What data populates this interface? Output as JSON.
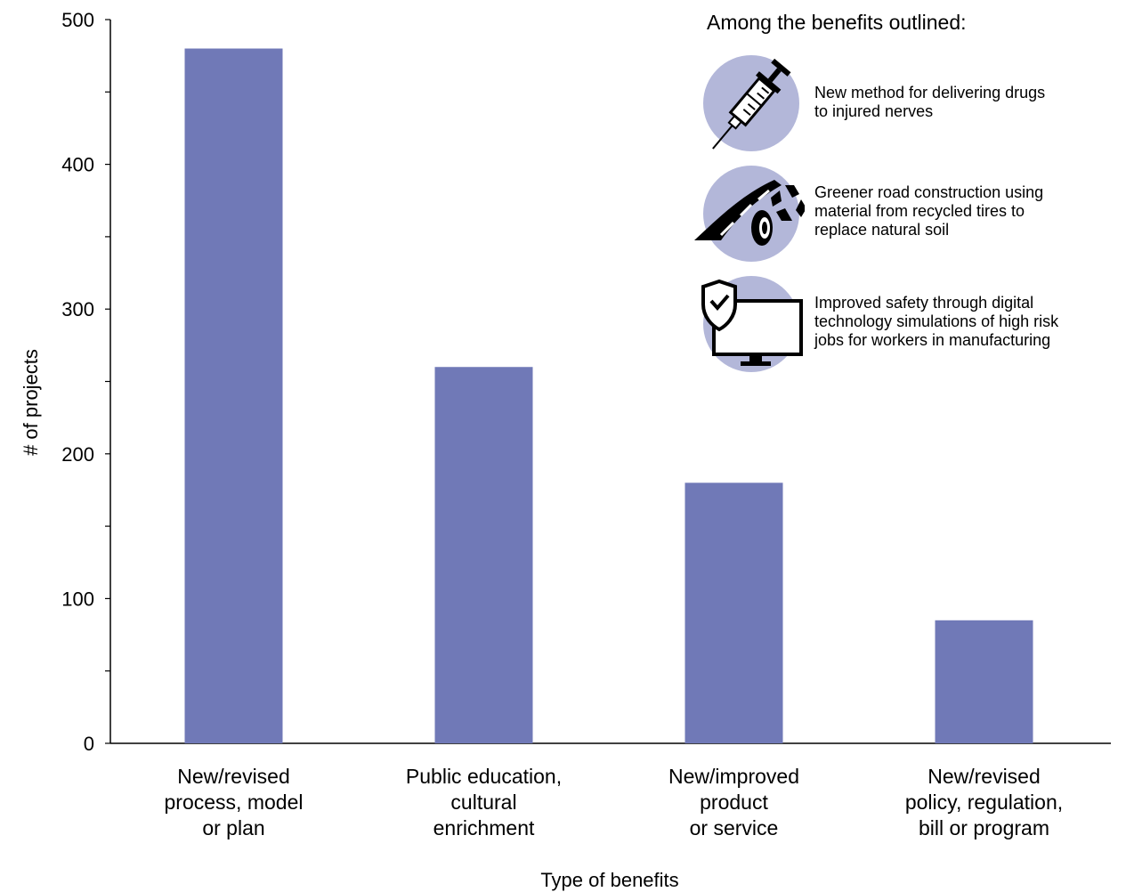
{
  "chart_data": {
    "type": "bar",
    "categories": [
      [
        "New/revised",
        "process, model",
        "or plan"
      ],
      [
        "Public education,",
        "cultural",
        "enrichment"
      ],
      [
        "New/improved",
        "product",
        "or service"
      ],
      [
        "New/revised",
        "policy, regulation,",
        "bill or program"
      ]
    ],
    "values": [
      480,
      260,
      180,
      85
    ],
    "xlabel": "Type of benefits",
    "ylabel": "# of projects",
    "ylim": [
      0,
      500
    ],
    "yticks": [
      0,
      100,
      200,
      300,
      400,
      500
    ],
    "grid": false,
    "bar_color": "#7079b7"
  },
  "inset": {
    "title": "Among the benefits outlined:",
    "circle_color": "#b3b7d9",
    "items": [
      {
        "icon": "syringe-icon",
        "lines": [
          "New method for delivering drugs",
          "to injured nerves"
        ]
      },
      {
        "icon": "road-tire-recycle-icon",
        "lines": [
          "Greener road construction using",
          "material from recycled tires to",
          "replace natural soil"
        ]
      },
      {
        "icon": "shield-monitor-icon",
        "lines": [
          "Improved safety through digital",
          "technology simulations of high risk",
          "jobs for workers in manufacturing"
        ]
      }
    ]
  }
}
